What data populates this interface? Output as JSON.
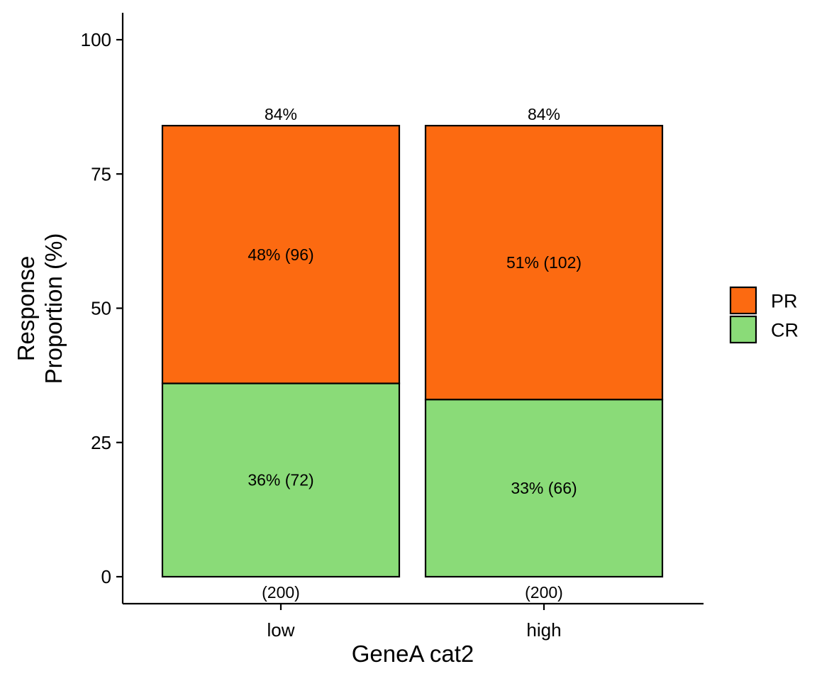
{
  "chart_data": {
    "type": "bar",
    "stacked": true,
    "categories": [
      "low",
      "high"
    ],
    "series": [
      {
        "name": "CR",
        "color": "#8ADB78",
        "values": [
          36,
          33
        ],
        "labels": [
          "36% (72)",
          "33% (66)"
        ]
      },
      {
        "name": "PR",
        "color": "#FC6A11",
        "values": [
          48,
          51
        ],
        "labels": [
          "48% (96)",
          "51% (102)"
        ]
      }
    ],
    "total_labels": [
      "84%",
      "84%"
    ],
    "n_labels": [
      "(200)",
      "(200)"
    ],
    "xlabel": "GeneA cat2",
    "ylabel": [
      "Response",
      "Proportion (%)"
    ],
    "ylim": [
      -5,
      105
    ],
    "yticks": [
      0,
      25,
      50,
      75,
      100
    ],
    "legend": {
      "position": "right",
      "order": [
        "PR",
        "CR"
      ]
    },
    "grid": false
  }
}
